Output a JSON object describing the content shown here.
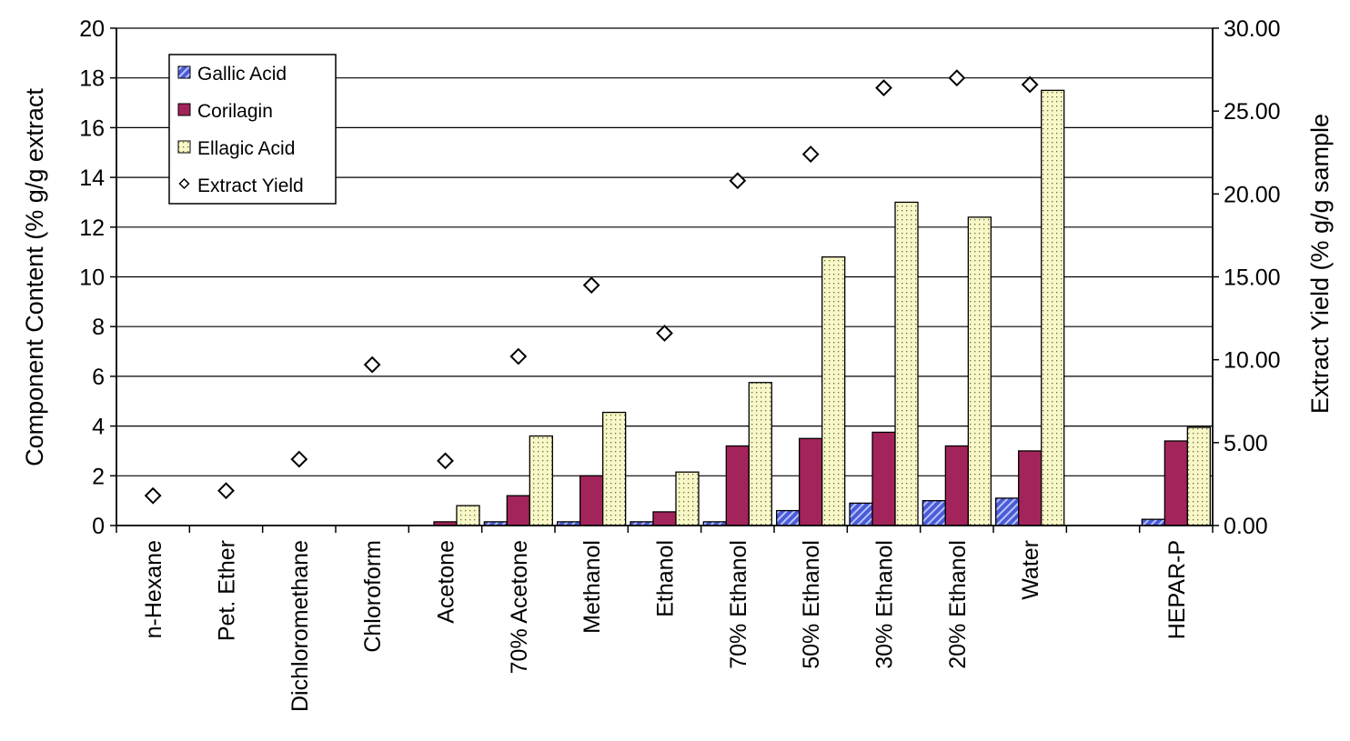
{
  "chart_data": {
    "type": "bar",
    "categories": [
      "n-Hexane",
      "Pet. Ether",
      "Dichloromethane",
      "Chloroform",
      "Acetone",
      "70% Acetone",
      "Methanol",
      "Ethanol",
      "70% Ethanol",
      "50% Ethanol",
      "30% Ethanol",
      "20% Ethanol",
      "Water",
      "",
      "HEPAR-P"
    ],
    "series": [
      {
        "name": "Gallic Acid",
        "kind": "bar",
        "axis": "left",
        "color": "#4a5bd6",
        "pattern": "diagonal-stripes",
        "values": [
          0,
          0,
          0,
          0,
          0,
          0.15,
          0.15,
          0.15,
          0.15,
          0.6,
          0.9,
          1.0,
          1.1,
          null,
          0.25
        ]
      },
      {
        "name": "Corilagin",
        "kind": "bar",
        "axis": "left",
        "color": "#a3245a",
        "pattern": "solid",
        "values": [
          0,
          0,
          0,
          0,
          0.15,
          1.2,
          2.0,
          0.55,
          3.2,
          3.5,
          3.75,
          3.2,
          3.0,
          null,
          3.4
        ]
      },
      {
        "name": "Ellagic Acid",
        "kind": "bar",
        "axis": "left",
        "color": "#f7f7c8",
        "pattern": "dots",
        "values": [
          0,
          0,
          0,
          0,
          0.8,
          3.6,
          4.55,
          2.15,
          5.75,
          10.8,
          13.0,
          12.4,
          17.5,
          null,
          3.95
        ]
      },
      {
        "name": "Extract Yield",
        "kind": "scatter",
        "axis": "right",
        "marker": "diamond",
        "values": [
          1.8,
          2.1,
          4.0,
          9.7,
          3.9,
          10.2,
          14.5,
          11.6,
          20.8,
          22.4,
          26.4,
          27.0,
          26.6,
          null,
          null
        ]
      }
    ],
    "ylabel": "Component Content (% g/g extract",
    "y2label": "Extract Yield (% g/g sample",
    "ylim": [
      0,
      20
    ],
    "yticks": [
      "0",
      "2",
      "4",
      "6",
      "8",
      "10",
      "12",
      "14",
      "16",
      "18",
      "20"
    ],
    "y2lim": [
      0,
      30
    ],
    "y2ticks": [
      "0.00",
      "5.00",
      "10.00",
      "15.00",
      "20.00",
      "25.00",
      "30.00"
    ],
    "grid": true,
    "legend_position": "top-left"
  }
}
